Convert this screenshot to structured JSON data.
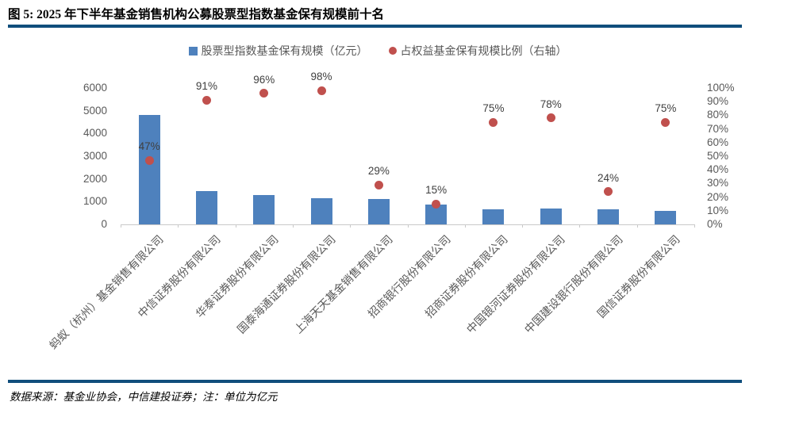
{
  "header": {
    "title": "图 5: 2025 年下半年基金销售机构公募股票型指数基金保有规模前十名"
  },
  "legend": {
    "bar_label": "股票型指数基金保有规模（亿元）",
    "dot_label": "占权益基金保有规模比例（右轴）"
  },
  "footer": {
    "source_note": "数据来源：基金业协会，中信建投证券；注：单位为亿元"
  },
  "colors": {
    "bar_blue": "#4E81BD",
    "dot_red": "#C0504D",
    "divider_navy": "#104E7C",
    "axis_text": "#595959",
    "data_label_text": "#404040",
    "axis_line": "#C9C9C9"
  },
  "chart_data": {
    "type": "bar",
    "subtype": "column + scatter combo, dual axis",
    "title": "图 5: 2025 年下半年基金销售机构公募股票型指数基金保有规模前十名",
    "xlabel": "",
    "ylabel_left": "股票型指数基金保有规模（亿元）",
    "ylabel_right": "占权益基金保有规模比例（右轴）",
    "grid": "off",
    "legend_position": "top",
    "categories": [
      "蚂蚁（杭州）基金销售有限公司",
      "中信证券股份有限公司",
      "华泰证券股份有限公司",
      "国泰海通证券股份有限公司",
      "上海天天基金销售有限公司",
      "招商银行股份有限公司",
      "招商证券股份有限公司",
      "中国银河证券股份有限公司",
      "中国建设银行股份有限公司",
      "国信证券股份有限公司"
    ],
    "series": [
      {
        "name": "股票型指数基金保有规模（亿元）",
        "type": "bar",
        "axis": "left",
        "values": [
          4800,
          1450,
          1300,
          1150,
          1100,
          860,
          680,
          690,
          660,
          610
        ]
      },
      {
        "name": "占权益基金保有规模比例（右轴）",
        "type": "scatter",
        "axis": "right",
        "values": [
          47,
          91,
          96,
          98,
          29,
          15,
          75,
          78,
          24,
          75
        ],
        "labels": [
          "47%",
          "91%",
          "96%",
          "98%",
          "29%",
          "15%",
          "75%",
          "78%",
          "24%",
          "75%"
        ]
      }
    ],
    "left_axis": {
      "min": 0,
      "max": 6000,
      "step": 1000,
      "ticks": [
        "0",
        "1000",
        "2000",
        "3000",
        "4000",
        "5000",
        "6000"
      ]
    },
    "right_axis": {
      "min": 0,
      "max": 100,
      "step": 10,
      "ticks": [
        "0%",
        "10%",
        "20%",
        "30%",
        "40%",
        "50%",
        "60%",
        "70%",
        "80%",
        "90%",
        "100%"
      ]
    }
  }
}
